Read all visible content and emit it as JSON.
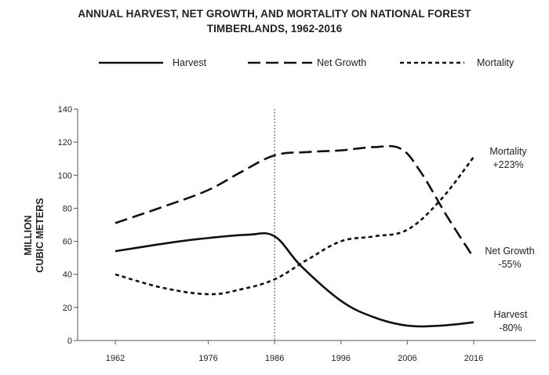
{
  "chart_data": {
    "type": "line",
    "title_line1": "ANNUAL HARVEST, NET GROWTH, AND MORTALITY ON NATIONAL FOREST",
    "title_line2": "TIMBERLANDS, 1962-2016",
    "ylabel_line1": "MILLION",
    "ylabel_line2": "CUBIC METERS",
    "xlabel": "",
    "ylim": [
      0,
      140
    ],
    "xlim": [
      1962,
      2016
    ],
    "x_ticks": [
      "1962",
      "1976",
      "1986",
      "1996",
      "2006",
      "2016"
    ],
    "y_ticks": [
      "0",
      "20",
      "40",
      "60",
      "80",
      "100",
      "120",
      "140"
    ],
    "reference_line_x": 1986,
    "grid": false,
    "legend_position": "top",
    "series": [
      {
        "name": "Harvest",
        "style": "solid",
        "x": [
          1962,
          1970,
          1976,
          1982,
          1986,
          1990,
          1996,
          2001,
          2006,
          2011,
          2016
        ],
        "values": [
          54,
          59,
          62,
          64,
          63,
          45,
          24,
          14,
          9,
          9,
          11
        ],
        "annotation_line1": "Harvest",
        "annotation_line2": "-80%"
      },
      {
        "name": "Net Growth",
        "style": "dashed",
        "x": [
          1962,
          1970,
          1976,
          1981,
          1986,
          1991,
          1996,
          2001,
          2005,
          2008,
          2012,
          2016
        ],
        "values": [
          71,
          82,
          91,
          102,
          112,
          114,
          115,
          117,
          116,
          102,
          75,
          50
        ],
        "annotation_line1": "Net Growth",
        "annotation_line2": "-55%"
      },
      {
        "name": "Mortality",
        "style": "dotted",
        "x": [
          1962,
          1969,
          1976,
          1981,
          1986,
          1991,
          1996,
          2001,
          2006,
          2011,
          2016
        ],
        "values": [
          40,
          32,
          28,
          31,
          37,
          49,
          60,
          63,
          67,
          85,
          111
        ],
        "annotation_line1": "Mortality",
        "annotation_line2": "+223%"
      }
    ]
  }
}
